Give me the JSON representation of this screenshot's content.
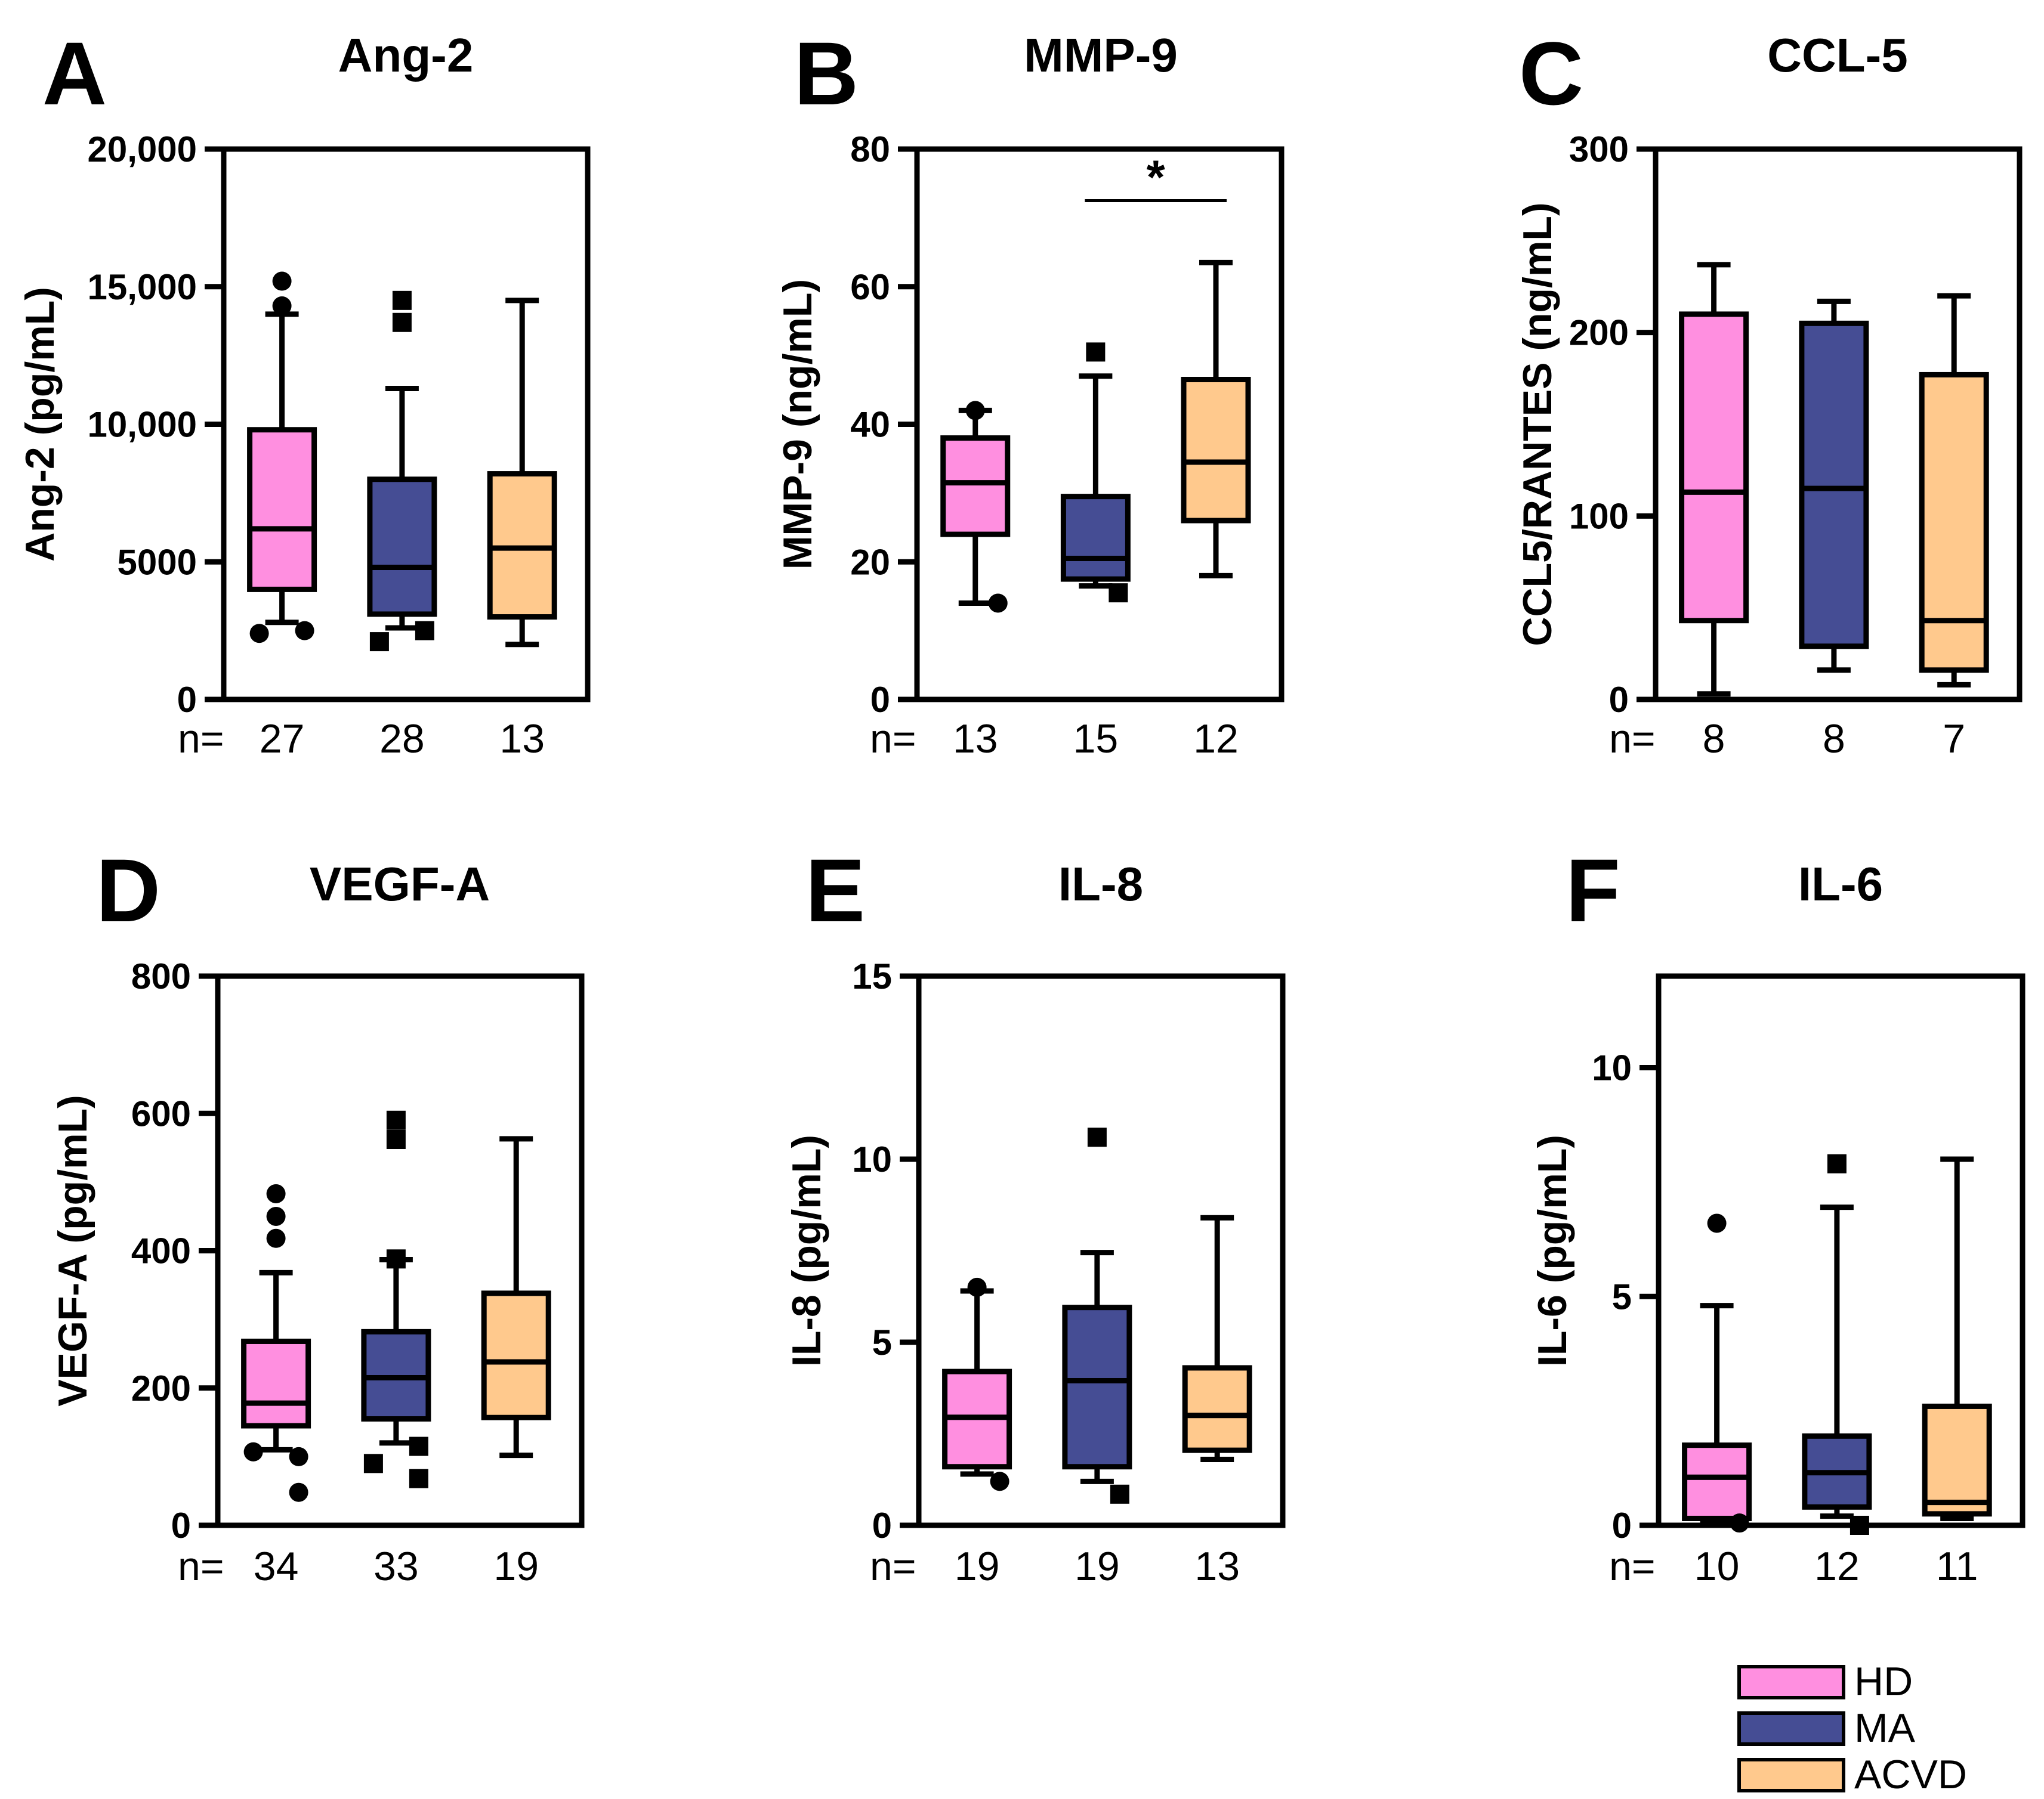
{
  "colors": {
    "HD": "#ff8fe0",
    "MA": "#454d94",
    "ACVD": "#ffc98d",
    "line": "#000000"
  },
  "legend": [
    {
      "label": "HD",
      "color": "#ff8fe0"
    },
    {
      "label": "MA",
      "color": "#454d94"
    },
    {
      "label": "ACVD",
      "color": "#ffc98d"
    }
  ],
  "chart_data": [
    {
      "type": "box",
      "panel": "A",
      "title": "Ang-2",
      "ylabel": "Ang-2 (pg/mL)",
      "ylim": [
        0,
        20000
      ],
      "yticks": [
        {
          "v": 0,
          "t": "0"
        },
        {
          "v": 5000,
          "t": "5000"
        },
        {
          "v": 10000,
          "t": "10,000"
        },
        {
          "v": 15000,
          "t": "15,000"
        },
        {
          "v": 20000,
          "t": "20,000"
        }
      ],
      "n_prefix": "n=",
      "groups": [
        {
          "name": "HD",
          "n": "27",
          "q1": 4000,
          "median": 6200,
          "q3": 9800,
          "whisker_low": 2800,
          "whisker_high": 14000,
          "outliers": [
            15200,
            14300,
            2400,
            2500
          ],
          "marker": "circle"
        },
        {
          "name": "MA",
          "n": "28",
          "q1": 3100,
          "median": 4800,
          "q3": 8000,
          "whisker_low": 2600,
          "whisker_high": 11300,
          "outliers": [
            14500,
            13700,
            2100,
            2500
          ],
          "marker": "square"
        },
        {
          "name": "ACVD",
          "n": "13",
          "q1": 3000,
          "median": 5500,
          "q3": 8200,
          "whisker_low": 2000,
          "whisker_high": 14500,
          "outliers": [],
          "marker": "none"
        }
      ],
      "significance": []
    },
    {
      "type": "box",
      "panel": "B",
      "title": "MMP-9",
      "ylabel": "MMP-9 (ng/mL)",
      "ylim": [
        0,
        80
      ],
      "yticks": [
        {
          "v": 0,
          "t": "0"
        },
        {
          "v": 20,
          "t": "20"
        },
        {
          "v": 40,
          "t": "40"
        },
        {
          "v": 60,
          "t": "60"
        },
        {
          "v": 80,
          "t": "80"
        }
      ],
      "n_prefix": "n=",
      "groups": [
        {
          "name": "HD",
          "n": "13",
          "q1": 24,
          "median": 31.5,
          "q3": 38,
          "whisker_low": 14,
          "whisker_high": 42,
          "outliers": [
            42,
            14
          ],
          "marker": "circle"
        },
        {
          "name": "MA",
          "n": "15",
          "q1": 17.5,
          "median": 20.5,
          "q3": 29.5,
          "whisker_low": 16.5,
          "whisker_high": 47,
          "outliers": [
            50.5,
            15.5
          ],
          "marker": "square"
        },
        {
          "name": "ACVD",
          "n": "12",
          "q1": 26,
          "median": 34.5,
          "q3": 46.5,
          "whisker_low": 18,
          "whisker_high": 63.5,
          "outliers": [],
          "marker": "none"
        }
      ],
      "significance": [
        {
          "from": 1,
          "to": 2,
          "label": "*",
          "y": 72.5
        }
      ]
    },
    {
      "type": "box",
      "panel": "C",
      "title": "CCL-5",
      "ylabel": "CCL5/RANTES (ng/mL)",
      "ylim": [
        0,
        300
      ],
      "yticks": [
        {
          "v": 0,
          "t": "0"
        },
        {
          "v": 100,
          "t": "100"
        },
        {
          "v": 200,
          "t": "200"
        },
        {
          "v": 300,
          "t": "300"
        }
      ],
      "n_prefix": "n=",
      "groups": [
        {
          "name": "HD",
          "n": "8",
          "q1": 43,
          "median": 113,
          "q3": 210,
          "whisker_low": 3,
          "whisker_high": 237,
          "outliers": [],
          "marker": "none"
        },
        {
          "name": "MA",
          "n": "8",
          "q1": 29,
          "median": 115,
          "q3": 205,
          "whisker_low": 16,
          "whisker_high": 217,
          "outliers": [],
          "marker": "none"
        },
        {
          "name": "ACVD",
          "n": "7",
          "q1": 16,
          "median": 43,
          "q3": 177,
          "whisker_low": 8,
          "whisker_high": 220,
          "outliers": [],
          "marker": "none"
        }
      ],
      "significance": []
    },
    {
      "type": "box",
      "panel": "D",
      "title": "VEGF-A",
      "ylabel": "VEGF-A (pg/mL)",
      "ylim": [
        0,
        800
      ],
      "yticks": [
        {
          "v": 0,
          "t": "0"
        },
        {
          "v": 200,
          "t": "200"
        },
        {
          "v": 400,
          "t": "400"
        },
        {
          "v": 600,
          "t": "600"
        },
        {
          "v": 800,
          "t": "800"
        }
      ],
      "n_prefix": "n=",
      "groups": [
        {
          "name": "HD",
          "n": "34",
          "q1": 145,
          "median": 178,
          "q3": 268,
          "whisker_low": 110,
          "whisker_high": 368,
          "outliers": [
            483,
            450,
            418,
            100,
            107,
            48
          ],
          "marker": "circle"
        },
        {
          "name": "MA",
          "n": "33",
          "q1": 155,
          "median": 215,
          "q3": 282,
          "whisker_low": 120,
          "whisker_high": 387,
          "outliers": [
            590,
            562,
            388,
            115,
            90,
            68
          ],
          "marker": "square"
        },
        {
          "name": "ACVD",
          "n": "19",
          "q1": 157,
          "median": 238,
          "q3": 338,
          "whisker_low": 102,
          "whisker_high": 563,
          "outliers": [],
          "marker": "none"
        }
      ],
      "significance": []
    },
    {
      "type": "box",
      "panel": "E",
      "title": "IL-8",
      "ylabel": "IL-8 (pg/mL)",
      "ylim": [
        0,
        15
      ],
      "yticks": [
        {
          "v": 0,
          "t": "0"
        },
        {
          "v": 5,
          "t": "5"
        },
        {
          "v": 10,
          "t": "10"
        },
        {
          "v": 15,
          "t": "15"
        }
      ],
      "n_prefix": "n=",
      "groups": [
        {
          "name": "HD",
          "n": "19",
          "q1": 1.6,
          "median": 2.95,
          "q3": 4.2,
          "whisker_low": 1.4,
          "whisker_high": 6.4,
          "outliers": [
            6.5,
            1.2
          ],
          "marker": "circle"
        },
        {
          "name": "MA",
          "n": "19",
          "q1": 1.6,
          "median": 3.95,
          "q3": 5.95,
          "whisker_low": 1.2,
          "whisker_high": 7.45,
          "outliers": [
            10.6,
            0.85
          ],
          "marker": "square"
        },
        {
          "name": "ACVD",
          "n": "13",
          "q1": 2.05,
          "median": 3.0,
          "q3": 4.3,
          "whisker_low": 1.8,
          "whisker_high": 8.4,
          "outliers": [],
          "marker": "none"
        }
      ],
      "significance": []
    },
    {
      "type": "box",
      "panel": "F",
      "title": "IL-6",
      "ylabel": "IL-6 (pg/mL)",
      "ylim": [
        0,
        12
      ],
      "yticks": [
        {
          "v": 0,
          "t": "0"
        },
        {
          "v": 5,
          "t": "5"
        },
        {
          "v": 10,
          "t": "10"
        }
      ],
      "n_prefix": "n=",
      "groups": [
        {
          "name": "HD",
          "n": "10",
          "q1": 0.15,
          "median": 1.05,
          "q3": 1.75,
          "whisker_low": 0.05,
          "whisker_high": 4.8,
          "outliers": [
            6.6,
            0.05
          ],
          "marker": "circle"
        },
        {
          "name": "MA",
          "n": "12",
          "q1": 0.4,
          "median": 1.15,
          "q3": 1.95,
          "whisker_low": 0.2,
          "whisker_high": 6.95,
          "outliers": [
            7.9,
            0.0
          ],
          "marker": "square"
        },
        {
          "name": "ACVD",
          "n": "11",
          "q1": 0.25,
          "median": 0.5,
          "q3": 2.6,
          "whisker_low": 0.15,
          "whisker_high": 8.0,
          "outliers": [],
          "marker": "none"
        }
      ],
      "significance": []
    }
  ]
}
